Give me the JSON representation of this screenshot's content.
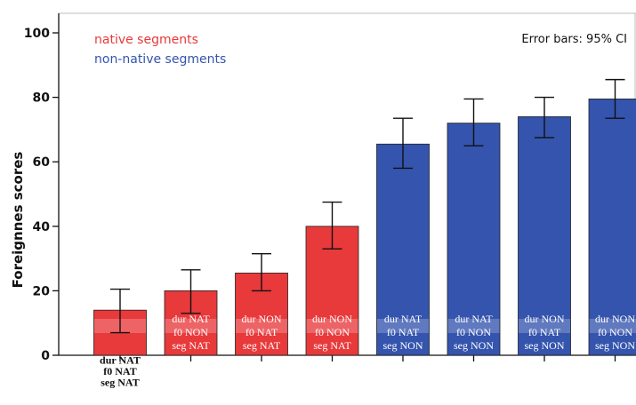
{
  "chart_data": {
    "type": "bar",
    "ylabel": "Foreignnes scores",
    "ylim": [
      0,
      100
    ],
    "yticks": [
      0,
      20,
      40,
      60,
      80,
      100
    ],
    "annotation": "Error bars: 95% CI",
    "legend": [
      {
        "label": "native segments",
        "color": "#e8393b"
      },
      {
        "label": "non-native segments",
        "color": "#3454ad"
      }
    ],
    "bars": [
      {
        "value": 14,
        "ci": [
          7,
          20.5
        ],
        "group": "native",
        "labels": [
          "dur NAT",
          "f0  NAT",
          "seg NAT"
        ]
      },
      {
        "value": 20,
        "ci": [
          13,
          26.5
        ],
        "group": "native",
        "labels": [
          "dur NAT",
          "f0   NON",
          "seg NAT"
        ]
      },
      {
        "value": 25.5,
        "ci": [
          20,
          31.5
        ],
        "group": "native",
        "labels": [
          "dur NON",
          "f0   NAT",
          "seg NAT"
        ]
      },
      {
        "value": 40,
        "ci": [
          33,
          47.5
        ],
        "group": "native",
        "labels": [
          "dur NON",
          "f0   NON",
          "seg NAT"
        ]
      },
      {
        "value": 65.5,
        "ci": [
          58,
          73.5
        ],
        "group": "non-native",
        "labels": [
          "dur NAT",
          "f0   NAT",
          "seg NON"
        ]
      },
      {
        "value": 72,
        "ci": [
          65,
          79.5
        ],
        "group": "non-native",
        "labels": [
          "dur NAT",
          "f0   NON",
          "seg NON"
        ]
      },
      {
        "value": 74,
        "ci": [
          67.5,
          80
        ],
        "group": "non-native",
        "labels": [
          "dur NON",
          "f0   NAT",
          "seg NON"
        ]
      },
      {
        "value": 79.5,
        "ci": [
          73.5,
          85.5
        ],
        "group": "non-native",
        "labels": [
          "dur NON",
          "f0   NON",
          "seg NON"
        ]
      }
    ],
    "colors": {
      "native": "#e8393b",
      "non-native": "#3454ad",
      "band": "#ffffff"
    }
  }
}
